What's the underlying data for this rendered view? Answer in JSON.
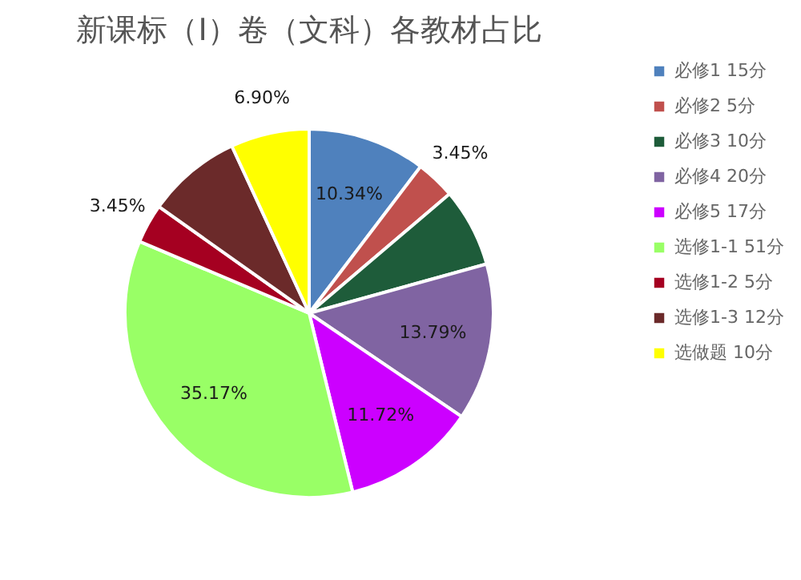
{
  "chart_data": {
    "type": "pie",
    "title": "新课标（Ⅰ）卷（文科）各教材占比",
    "categories": [
      "必修1 15分",
      "必修2 5分",
      "必修3 10分",
      "必修4 20分",
      "必修5 17分",
      "选修1-1 51分",
      "选修1-2 5分",
      "选修1-3 12分",
      "选做题 10分"
    ],
    "values": [
      10.34,
      3.45,
      6.9,
      13.79,
      11.72,
      35.17,
      3.45,
      8.28,
      6.9
    ],
    "colors": [
      "#4f81bd",
      "#c0504d",
      "#1e5c3a",
      "#8064a2",
      "#cc00ff",
      "#99ff66",
      "#a50021",
      "#6b2a2a",
      "#ffff00"
    ],
    "value_labels": [
      "10.34%",
      "3.45%",
      null,
      "13.79%",
      "11.72%",
      "35.17%",
      "3.45%",
      null,
      "6.90%"
    ],
    "legend": "right"
  }
}
